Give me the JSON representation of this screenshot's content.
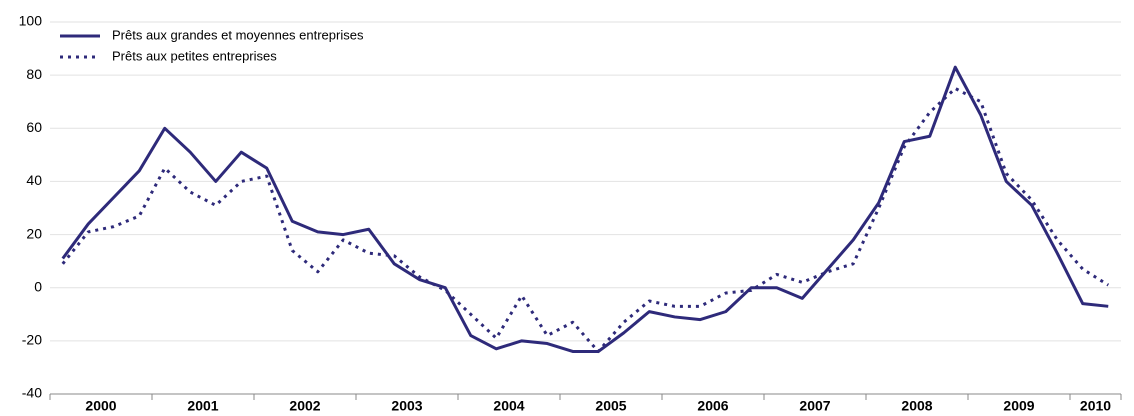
{
  "chart_data": {
    "type": "line",
    "categories": [
      "2000",
      null,
      null,
      null,
      "2001",
      null,
      null,
      null,
      "2002",
      null,
      null,
      null,
      "2003",
      null,
      null,
      null,
      "2004",
      null,
      null,
      null,
      "2005",
      null,
      null,
      null,
      "2006",
      null,
      null,
      null,
      "2007",
      null,
      null,
      null,
      "2008",
      null,
      null,
      null,
      "2009",
      null,
      null,
      null,
      "2010",
      null
    ],
    "series": [
      {
        "name": "Prêts aux grandes et moyennes entreprises",
        "color": "#2e2a7a",
        "line_style": "solid",
        "values": [
          11,
          24,
          34,
          44,
          60,
          51,
          40,
          51,
          45,
          25,
          21,
          20,
          22,
          9,
          3,
          0,
          -18,
          -23,
          -20,
          -21,
          -24,
          -24,
          -17,
          -9,
          -11,
          -12,
          -9,
          0,
          0,
          -4,
          7,
          18,
          32,
          55,
          57,
          83,
          65,
          40,
          31,
          13,
          -6,
          -7
        ]
      },
      {
        "name": "Prêts aux petites entreprises",
        "color": "#2e2a7a",
        "line_style": "dotted",
        "values": [
          9,
          21,
          23,
          27,
          45,
          36,
          31,
          40,
          42,
          14,
          6,
          18,
          13,
          12,
          4,
          -1,
          -10,
          -19,
          -3,
          -18,
          -13,
          -24,
          -13,
          -5,
          -7,
          -7,
          -2,
          -1,
          5,
          2,
          6,
          9,
          30,
          53,
          66,
          75,
          70,
          43,
          33,
          18,
          7,
          1
        ]
      }
    ],
    "ylim": [
      -40,
      100
    ],
    "yticks": [
      -40,
      -20,
      0,
      20,
      40,
      60,
      80,
      100
    ],
    "grid": true,
    "legend": "top-left"
  }
}
